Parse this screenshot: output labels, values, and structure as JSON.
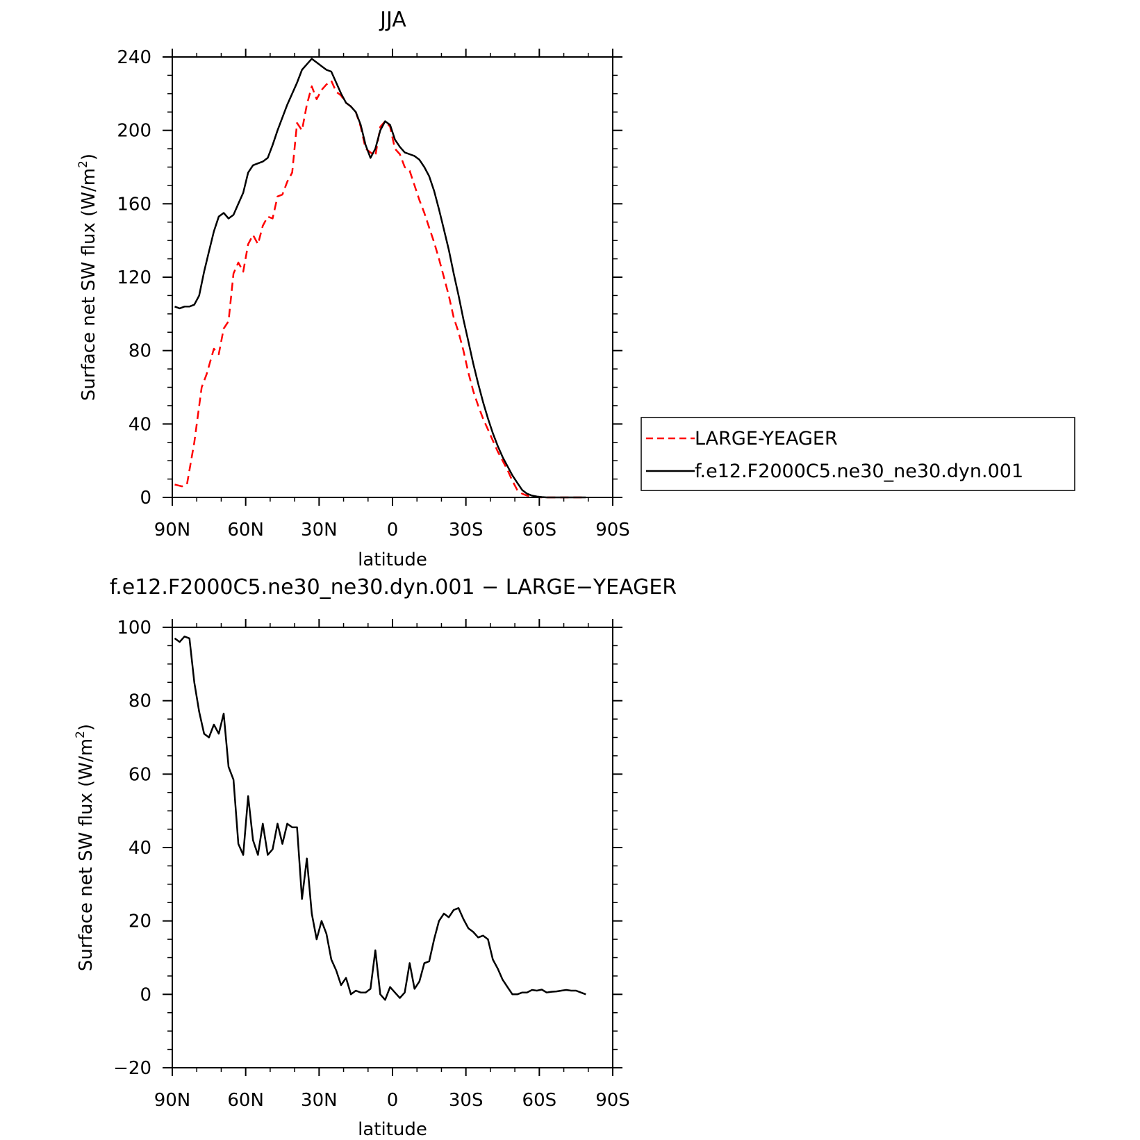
{
  "chart_data": [
    {
      "type": "line",
      "title": "JJA",
      "xlabel": "latitude",
      "ylabel": "Surface net SW flux (W/m",
      "ylabel_sup": "2",
      "ylabel_end": ")",
      "xlim": [
        90,
        -90
      ],
      "ylim": [
        0,
        240
      ],
      "x_ticks": [
        90,
        60,
        30,
        0,
        -30,
        -60,
        -90
      ],
      "x_tick_labels": [
        "90N",
        "60N",
        "30N",
        "0",
        "30S",
        "60S",
        "90S"
      ],
      "y_ticks": [
        0,
        40,
        80,
        120,
        160,
        200,
        240
      ],
      "y_tick_labels": [
        "0",
        "40",
        "80",
        "120",
        "160",
        "200",
        "240"
      ],
      "legend": "right",
      "series": [
        {
          "name": "LARGE-YEAGER",
          "color": "#ff0000",
          "dash": true,
          "x": [
            89,
            86,
            84,
            81,
            78,
            76,
            73,
            71,
            69,
            67,
            65,
            63,
            61,
            59,
            57,
            55,
            53,
            51,
            49,
            47,
            45,
            43,
            41,
            39,
            37,
            35,
            33,
            31,
            29,
            27,
            25,
            23,
            21,
            19,
            17,
            15,
            13,
            11,
            9,
            7,
            5,
            3,
            1,
            -1,
            -3,
            -5,
            -7,
            -9,
            -11,
            -13,
            -15,
            -17,
            -19,
            -21,
            -23,
            -25,
            -27,
            -29,
            -31,
            -33,
            -35,
            -37,
            -39,
            -41,
            -43,
            -45,
            -47,
            -49,
            -51,
            -53,
            -55,
            -57,
            -59,
            -61,
            -63,
            -65,
            -67,
            -69,
            -71,
            -73,
            -75,
            -77,
            -79
          ],
          "values": [
            7,
            6,
            7,
            30,
            60,
            67,
            81,
            78,
            92,
            96,
            122,
            128,
            123,
            138,
            143,
            138,
            148,
            153,
            152,
            164,
            165,
            172,
            177,
            204,
            200,
            214,
            224,
            217,
            222,
            225,
            227,
            221,
            219,
            215,
            213,
            210,
            202,
            190,
            188,
            186,
            202,
            205,
            202,
            190,
            187,
            180,
            178,
            170,
            162,
            155,
            147,
            139,
            130,
            120,
            110,
            98,
            90,
            80,
            68,
            58,
            50,
            43,
            37,
            31,
            25,
            20,
            15,
            9,
            4,
            2,
            1,
            0.5,
            0.2,
            0,
            0,
            0,
            0,
            0,
            0,
            0,
            0,
            0,
            0
          ]
        },
        {
          "name": "f.e12.F2000C5.ne30_ne30.dyn.001",
          "color": "#000000",
          "dash": false,
          "x": [
            89,
            87,
            85,
            83,
            81,
            79,
            77,
            75,
            73,
            71,
            69,
            67,
            65,
            63,
            61,
            59,
            57,
            55,
            53,
            51,
            49,
            47,
            45,
            43,
            41,
            39,
            37,
            35,
            33,
            31,
            29,
            27,
            25,
            23,
            21,
            19,
            17,
            15,
            13,
            11,
            9,
            7,
            5,
            3,
            1,
            -1,
            -3,
            -5,
            -7,
            -9,
            -11,
            -13,
            -15,
            -17,
            -19,
            -21,
            -23,
            -25,
            -27,
            -29,
            -31,
            -33,
            -35,
            -37,
            -39,
            -41,
            -43,
            -45,
            -47,
            -49,
            -51,
            -53,
            -55,
            -57,
            -59,
            -61,
            -63,
            -65,
            -67,
            -69,
            -71,
            -73,
            -75,
            -77,
            -79
          ],
          "values": [
            104,
            103,
            104,
            104,
            105,
            110,
            123,
            134,
            145,
            153,
            155,
            152,
            154,
            160,
            166,
            177,
            181,
            182,
            183,
            185,
            192,
            200,
            207,
            214,
            220,
            226,
            233,
            236,
            239,
            237,
            235,
            233,
            232,
            226,
            220,
            215,
            213,
            210,
            203,
            192,
            185,
            190,
            200,
            205,
            203,
            195,
            191,
            188,
            187,
            186,
            184,
            180,
            175,
            167,
            157,
            146,
            135,
            122,
            110,
            97,
            85,
            73,
            62,
            52,
            43,
            35,
            28,
            22,
            17,
            12,
            8,
            4,
            2,
            1,
            0.5,
            0.2,
            0,
            0,
            0,
            0,
            0,
            0,
            0,
            0,
            0
          ]
        }
      ]
    },
    {
      "type": "line",
      "title": "f.e12.F2000C5.ne30_ne30.dyn.001 − LARGE−YEAGER",
      "xlabel": "latitude",
      "ylabel": "Surface net SW flux (W/m",
      "ylabel_sup": "2",
      "ylabel_end": ")",
      "xlim": [
        90,
        -90
      ],
      "ylim": [
        -20,
        100
      ],
      "x_ticks": [
        90,
        60,
        30,
        0,
        -30,
        -60,
        -90
      ],
      "x_tick_labels": [
        "90N",
        "60N",
        "30N",
        "0",
        "30S",
        "60S",
        "90S"
      ],
      "y_ticks": [
        -20,
        0,
        20,
        40,
        60,
        80,
        100
      ],
      "y_tick_labels": [
        "−20",
        "0",
        "20",
        "40",
        "60",
        "80",
        "100"
      ],
      "series": [
        {
          "color": "#000000",
          "dash": false,
          "x": [
            89,
            87,
            85,
            83,
            81,
            79,
            77,
            75,
            73,
            71,
            69,
            67,
            65,
            63,
            61,
            59,
            57,
            55,
            53,
            51,
            49,
            47,
            45,
            43,
            41,
            39,
            37,
            35,
            33,
            31,
            29,
            27,
            25,
            23,
            21,
            19,
            17,
            15,
            13,
            11,
            9,
            7,
            5,
            3,
            1,
            -1,
            -3,
            -5,
            -7,
            -9,
            -11,
            -13,
            -15,
            -17,
            -19,
            -21,
            -23,
            -25,
            -27,
            -29,
            -31,
            -33,
            -35,
            -37,
            -39,
            -41,
            -43,
            -45,
            -47,
            -49,
            -51,
            -53,
            -55,
            -57,
            -59,
            -61,
            -63,
            -65,
            -67,
            -69,
            -71,
            -73,
            -75,
            -77,
            -79
          ],
          "values": [
            97,
            96,
            97.5,
            97,
            85,
            77,
            71,
            70,
            73.5,
            71,
            76.5,
            62,
            58.5,
            41,
            38,
            54,
            42,
            38,
            46.5,
            38,
            39.5,
            46.5,
            41,
            46.5,
            45.5,
            45.5,
            26,
            37,
            22,
            15,
            20,
            16.5,
            9.5,
            6.5,
            2.5,
            4.5,
            0,
            1,
            0.5,
            0.5,
            1.5,
            12,
            0,
            -1.5,
            2,
            0.5,
            -1,
            0.5,
            8.5,
            1.5,
            3.5,
            8.5,
            9,
            15,
            20,
            22,
            21,
            23,
            23.5,
            20.5,
            18,
            17,
            15.5,
            16,
            15,
            9.5,
            7,
            4,
            2,
            0,
            0,
            0.5,
            0.5,
            1.2,
            1,
            1.3,
            0.5,
            0.7,
            0.8,
            1,
            1.2,
            1,
            1,
            0.5,
            0
          ]
        }
      ]
    }
  ]
}
